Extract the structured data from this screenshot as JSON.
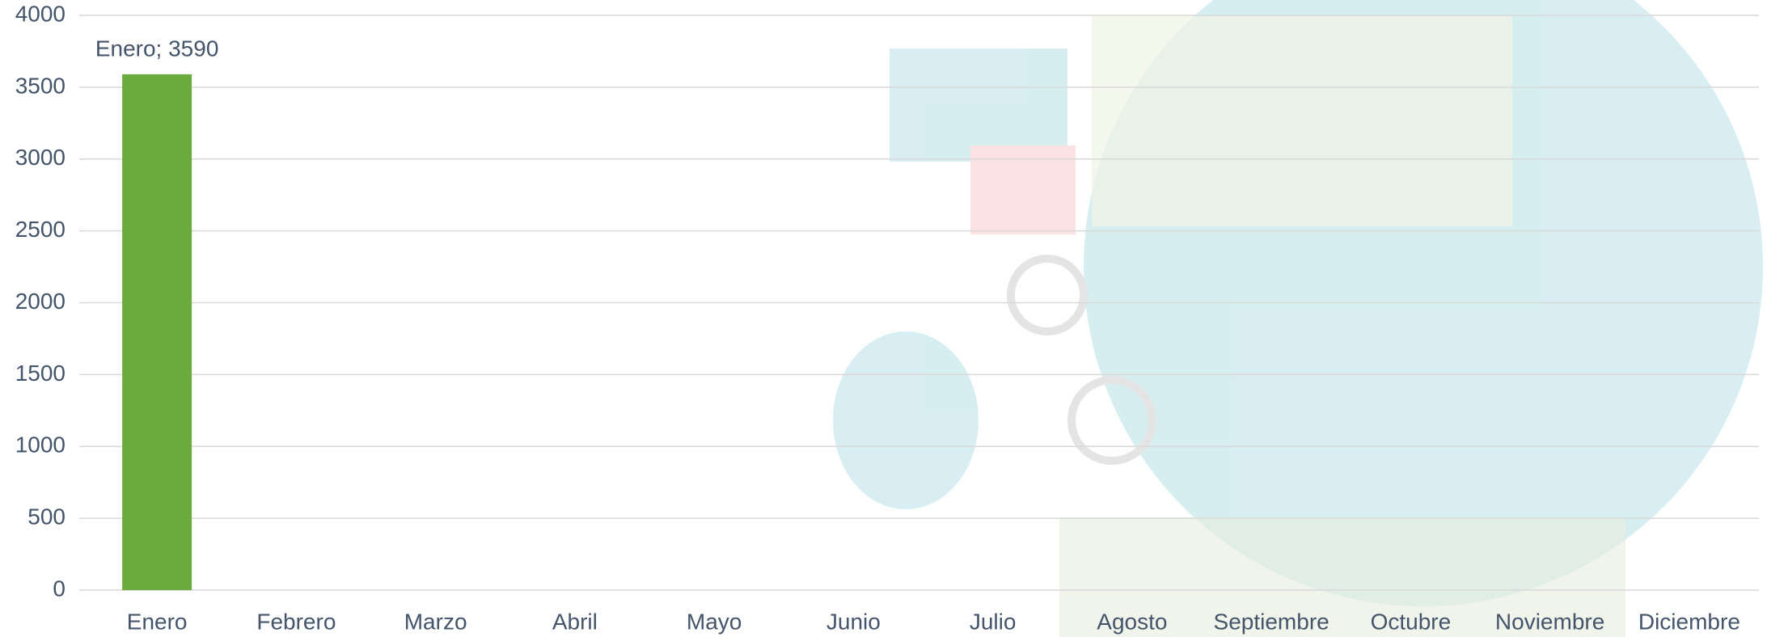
{
  "chart_data": {
    "type": "bar",
    "categories": [
      "Enero",
      "Febrero",
      "Marzo",
      "Abril",
      "Mayo",
      "Junio",
      "Julio",
      "Agosto",
      "Septiembre",
      "Octubre",
      "Noviembre",
      "Diciembre"
    ],
    "values": [
      3590,
      null,
      null,
      null,
      null,
      null,
      null,
      null,
      null,
      null,
      null,
      null
    ],
    "value_labels": [
      "Enero; 3590",
      null,
      null,
      null,
      null,
      null,
      null,
      null,
      null,
      null,
      null,
      null
    ],
    "color": "#6aaa3e",
    "ylim": [
      0,
      4000
    ],
    "yticks": [
      0,
      500,
      1000,
      1500,
      2000,
      2500,
      3000,
      3500,
      4000
    ],
    "grid": true
  }
}
